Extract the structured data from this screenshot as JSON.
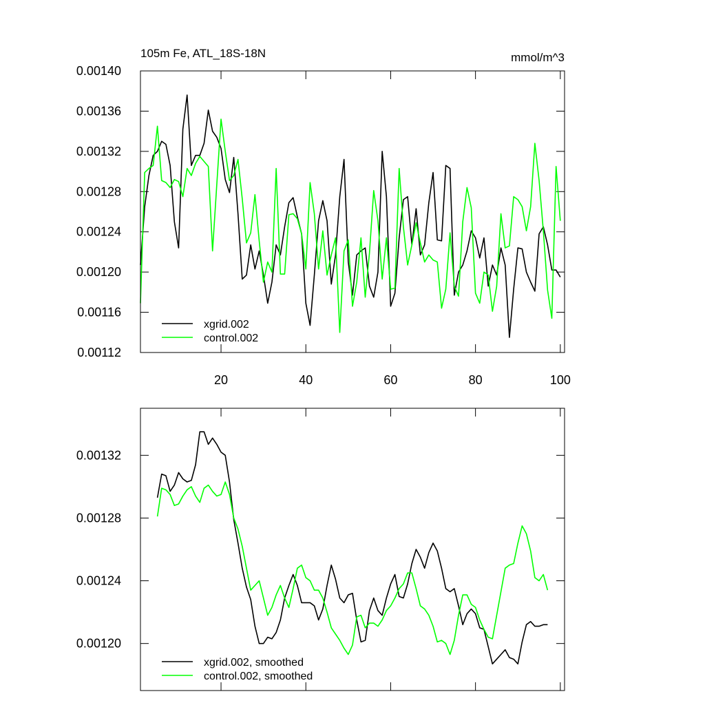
{
  "chart_data": [
    {
      "type": "line",
      "title": "105m Fe, ATL_18S-18N",
      "units": "mmol/m^3",
      "x": [
        1,
        2,
        3,
        4,
        5,
        6,
        7,
        8,
        9,
        10,
        11,
        12,
        13,
        14,
        15,
        16,
        17,
        18,
        19,
        20,
        21,
        22,
        23,
        24,
        25,
        26,
        27,
        28,
        29,
        30,
        31,
        32,
        33,
        34,
        35,
        36,
        37,
        38,
        39,
        40,
        41,
        42,
        43,
        44,
        45,
        46,
        47,
        48,
        49,
        50,
        51,
        52,
        53,
        54,
        55,
        56,
        57,
        58,
        59,
        60,
        61,
        62,
        63,
        64,
        65,
        66,
        67,
        68,
        69,
        70,
        71,
        72,
        73,
        74,
        75,
        76,
        77,
        78,
        79,
        80,
        81,
        82,
        83,
        84,
        85,
        86,
        87,
        88,
        89,
        90,
        91,
        92,
        93,
        94,
        95,
        96,
        97,
        98,
        99,
        100
      ],
      "series": [
        {
          "name": "xgrid.002",
          "color": "#000000",
          "values": [
            0.001207,
            0.001265,
            0.001296,
            0.001316,
            0.00132,
            0.00133,
            0.001327,
            0.001306,
            0.00125,
            0.001224,
            0.001342,
            0.001376,
            0.001306,
            0.001316,
            0.001316,
            0.001328,
            0.001361,
            0.00134,
            0.001334,
            0.001323,
            0.001292,
            0.001279,
            0.001314,
            0.001258,
            0.001193,
            0.001197,
            0.001227,
            0.001203,
            0.001221,
            0.001197,
            0.001169,
            0.00119,
            0.001227,
            0.001217,
            0.001245,
            0.001269,
            0.001274,
            0.001255,
            0.001238,
            0.001169,
            0.001147,
            0.001197,
            0.001251,
            0.001271,
            0.001251,
            0.001188,
            0.001217,
            0.001275,
            0.001312,
            0.00121,
            0.001177,
            0.001217,
            0.001221,
            0.001224,
            0.001186,
            0.001175,
            0.0012,
            0.00132,
            0.001275,
            0.001166,
            0.001179,
            0.001234,
            0.001272,
            0.001275,
            0.001227,
            0.001263,
            0.001217,
            0.001227,
            0.001269,
            0.001299,
            0.001232,
            0.001231,
            0.001306,
            0.001303,
            0.001177,
            0.0012,
            0.001207,
            0.001221,
            0.001241,
            0.001234,
            0.001214,
            0.001234,
            0.001186,
            0.001207,
            0.001197,
            0.001224,
            0.001207,
            0.001135,
            0.001183,
            0.001224,
            0.001223,
            0.0012,
            0.00119,
            0.001181,
            0.001238,
            0.001245,
            0.001227,
            0.001202,
            0.001202,
            0.001195
          ]
        },
        {
          "name": "control.002",
          "color": "#00ff00",
          "values": [
            0.001169,
            0.001299,
            0.001303,
            0.001306,
            0.001345,
            0.001291,
            0.001289,
            0.001284,
            0.001292,
            0.00129,
            0.001275,
            0.001303,
            0.001296,
            0.001308,
            0.001315,
            0.00131,
            0.001305,
            0.001221,
            0.001287,
            0.001352,
            0.00132,
            0.001291,
            0.001296,
            0.001312,
            0.001273,
            0.001229,
            0.001239,
            0.001277,
            0.001231,
            0.00119,
            0.00121,
            0.0012,
            0.001303,
            0.001198,
            0.001198,
            0.001257,
            0.001258,
            0.001253,
            0.001238,
            0.001203,
            0.001289,
            0.001258,
            0.001203,
            0.001241,
            0.001197,
            0.001217,
            0.001234,
            0.00114,
            0.001221,
            0.001232,
            0.001166,
            0.00119,
            0.001234,
            0.001175,
            0.001219,
            0.001281,
            0.001251,
            0.001193,
            0.001234,
            0.001183,
            0.001184,
            0.001303,
            0.001245,
            0.001207,
            0.001227,
            0.001249,
            0.001229,
            0.00121,
            0.001217,
            0.001212,
            0.00121,
            0.001164,
            0.001183,
            0.001239,
            0.001186,
            0.001176,
            0.00125,
            0.001284,
            0.001264,
            0.001179,
            0.001169,
            0.0012,
            0.001197,
            0.001161,
            0.001186,
            0.001258,
            0.001224,
            0.001226,
            0.001275,
            0.001272,
            0.001265,
            0.001241,
            0.001265,
            0.001328,
            0.001291,
            0.001241,
            0.001182,
            0.001154,
            0.001305,
            0.001251
          ]
        }
      ],
      "xlim": [
        1,
        101
      ],
      "ylim": [
        0.00112,
        0.0014
      ],
      "xticks": [
        20,
        40,
        60,
        80,
        100
      ],
      "xticklabels": true,
      "yticks": [
        0.00112,
        0.00116,
        {
          "value": 0.0012,
          "label": "0.00120"
        },
        0.00124,
        0.00128,
        0.00132,
        0.00136,
        {
          "value": 0.0014,
          "label": "0.00140"
        }
      ]
    },
    {
      "type": "line",
      "x": [
        5,
        6,
        7,
        8,
        9,
        10,
        11,
        12,
        13,
        14,
        15,
        16,
        17,
        18,
        19,
        20,
        21,
        22,
        23,
        24,
        25,
        26,
        27,
        28,
        29,
        30,
        31,
        32,
        33,
        34,
        35,
        36,
        37,
        38,
        39,
        40,
        41,
        42,
        43,
        44,
        45,
        46,
        47,
        48,
        49,
        50,
        51,
        52,
        53,
        54,
        55,
        56,
        57,
        58,
        59,
        60,
        61,
        62,
        63,
        64,
        65,
        66,
        67,
        68,
        69,
        70,
        71,
        72,
        73,
        74,
        75,
        76,
        77,
        78,
        79,
        80,
        81,
        82,
        83,
        84,
        85,
        86,
        87,
        88,
        89,
        90,
        91,
        92,
        93,
        94,
        95,
        96,
        97
      ],
      "series": [
        {
          "name": "xgrid.002, smoothed",
          "color": "#000000",
          "values": [
            0.001293,
            0.001308,
            0.001307,
            0.001297,
            0.001301,
            0.001309,
            0.001305,
            0.001303,
            0.001304,
            0.001314,
            0.001335,
            0.001335,
            0.001327,
            0.001331,
            0.001327,
            0.001322,
            0.00132,
            0.001303,
            0.001279,
            0.001264,
            0.001248,
            0.001236,
            0.001228,
            0.001211,
            0.0012,
            0.0012,
            0.001204,
            0.001203,
            0.001207,
            0.001215,
            0.001229,
            0.001237,
            0.001244,
            0.001237,
            0.001226,
            0.001226,
            0.001226,
            0.001224,
            0.001215,
            0.001222,
            0.001237,
            0.00125,
            0.001241,
            0.001229,
            0.001226,
            0.001231,
            0.001232,
            0.001215,
            0.001201,
            0.001202,
            0.001221,
            0.001229,
            0.001221,
            0.001218,
            0.001229,
            0.001238,
            0.001244,
            0.00123,
            0.001229,
            0.001238,
            0.001251,
            0.00126,
            0.001255,
            0.001248,
            0.001258,
            0.001264,
            0.001259,
            0.001248,
            0.001235,
            0.001233,
            0.001235,
            0.001224,
            0.001212,
            0.001219,
            0.001222,
            0.001219,
            0.00121,
            0.001209,
            0.001198,
            0.001187,
            0.00119,
            0.001193,
            0.001196,
            0.001191,
            0.00119,
            0.001187,
            0.001201,
            0.001212,
            0.001214,
            0.001211,
            0.001211,
            0.001212,
            0.001212
          ]
        },
        {
          "name": "control.002, smoothed",
          "color": "#00ff00",
          "values": [
            0.001281,
            0.001299,
            0.001298,
            0.001295,
            0.001288,
            0.001289,
            0.001294,
            0.001298,
            0.0013,
            0.001294,
            0.00129,
            0.001299,
            0.001301,
            0.001297,
            0.001294,
            0.001295,
            0.001303,
            0.001295,
            0.00128,
            0.001273,
            0.001262,
            0.001248,
            0.001234,
            0.001237,
            0.00124,
            0.001229,
            0.001218,
            0.001223,
            0.001231,
            0.001237,
            0.001229,
            0.001223,
            0.001235,
            0.001248,
            0.00125,
            0.001242,
            0.00124,
            0.001234,
            0.001234,
            0.001229,
            0.00122,
            0.00121,
            0.001206,
            0.001202,
            0.001197,
            0.001193,
            0.001199,
            0.001217,
            0.001218,
            0.00121,
            0.001213,
            0.001213,
            0.001211,
            0.001215,
            0.001221,
            0.001224,
            0.001229,
            0.001235,
            0.001238,
            0.001245,
            0.001245,
            0.001235,
            0.001224,
            0.001222,
            0.001218,
            0.001211,
            0.001201,
            0.001202,
            0.0012,
            0.001193,
            0.001202,
            0.001218,
            0.001231,
            0.001231,
            0.001225,
            0.001223,
            0.001215,
            0.001209,
            0.001204,
            0.001203,
            0.001218,
            0.001233,
            0.001248,
            0.00125,
            0.001251,
            0.001264,
            0.001275,
            0.00127,
            0.001259,
            0.001242,
            0.00124,
            0.001244,
            0.001234
          ]
        }
      ],
      "xlim": [
        1,
        101
      ],
      "ylim": [
        0.00117,
        0.00135
      ],
      "xticks": [
        20,
        40,
        60,
        80,
        100
      ],
      "xticklabels": false,
      "yticks": [
        {
          "value": 0.0012,
          "label": "0.00120"
        },
        0.00124,
        0.00128,
        0.00132
      ]
    }
  ]
}
